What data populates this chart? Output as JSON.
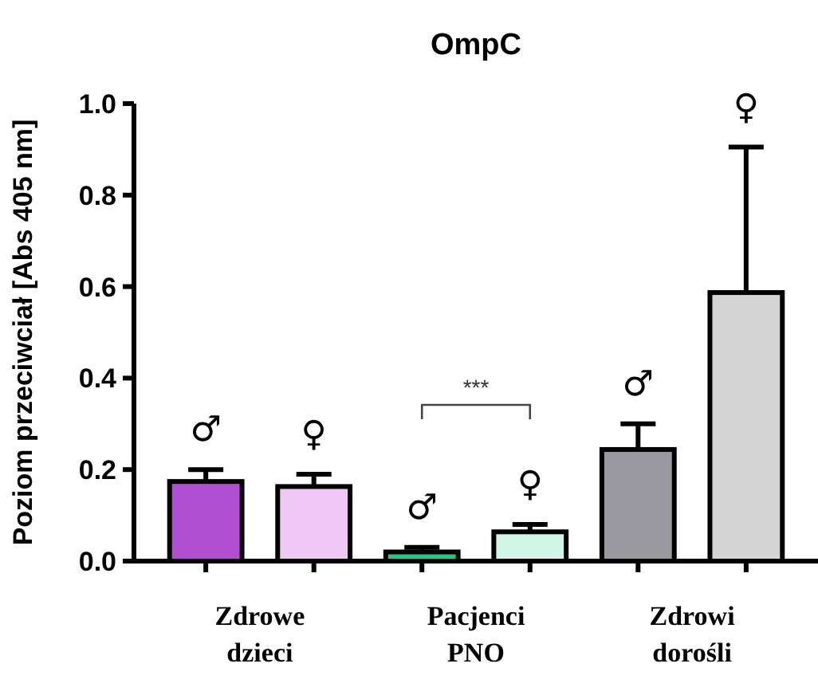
{
  "chart_data": {
    "type": "bar",
    "title": "OmpC",
    "ylabel": "Poziom przeciwciał [Abs 405 nm]",
    "categories": [
      null,
      null,
      null,
      null,
      null,
      null
    ],
    "values": [
      0.174,
      0.163,
      0.02,
      0.064,
      0.244,
      0.587
    ],
    "colors": [
      "#b050d0",
      "#efc8f5",
      "#30c090",
      "#d0f5e6",
      "#9a999f",
      "#d4d4d4"
    ],
    "errors": [
      [
        0.174,
        0.2
      ],
      [
        0.163,
        0.19
      ],
      [
        0.02,
        0.03
      ],
      [
        0.064,
        0.08
      ],
      [
        0.244,
        0.3
      ],
      [
        0.587,
        0.905
      ]
    ],
    "ylim": [
      0,
      1
    ],
    "yticks": [
      {
        "value": 0,
        "label": "0.0"
      },
      {
        "value": 0.2,
        "label": "0.2"
      },
      {
        "value": 0.4,
        "label": "0.4"
      },
      {
        "value": 0.6,
        "label": "0.6"
      },
      {
        "value": 0.8,
        "label": "0.8"
      },
      {
        "value": 1,
        "label": "1.0"
      }
    ],
    "grid": false,
    "annotations": [
      "♂",
      "♀",
      "♂",
      "♀",
      "♂",
      "♀",
      "***",
      "Zdrowe\ndzieci",
      "Pacjenci\nPNO",
      "Zdrowi\ndorośli"
    ]
  }
}
